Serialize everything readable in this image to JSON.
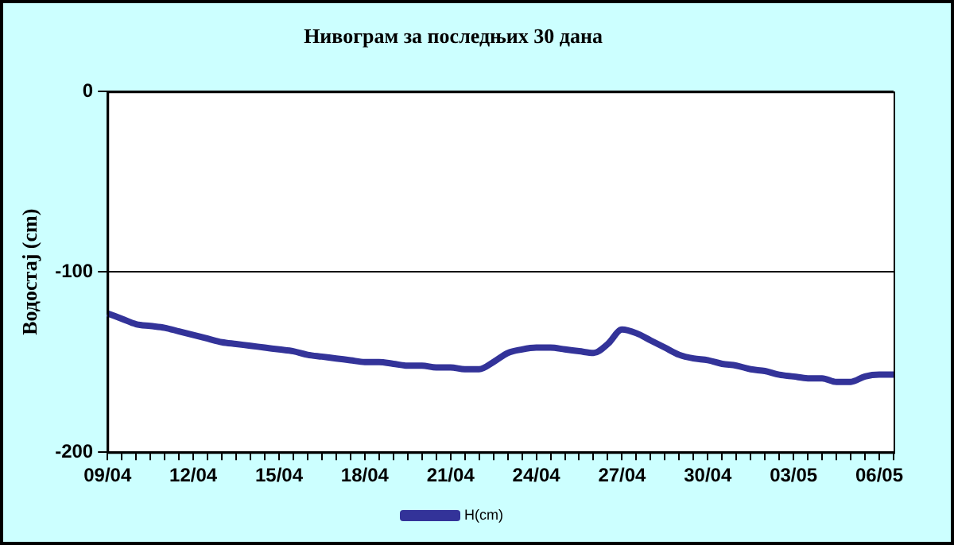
{
  "chart_data": {
    "type": "line",
    "title": "Нивограм за последњих 30 дана",
    "ylabel": "Водостај (cm)",
    "categories": [
      "09/04",
      null,
      null,
      null,
      null,
      null,
      "12/04",
      null,
      null,
      null,
      null,
      null,
      "15/04",
      null,
      null,
      null,
      null,
      null,
      "18/04",
      null,
      null,
      null,
      null,
      null,
      "21/04",
      null,
      null,
      null,
      null,
      null,
      "24/04",
      null,
      null,
      null,
      null,
      null,
      "27/04",
      null,
      null,
      null,
      null,
      null,
      "30/04",
      null,
      null,
      null,
      null,
      null,
      "03/05",
      null,
      null,
      null,
      null,
      null,
      "06/05",
      null
    ],
    "series": [
      {
        "name": "H(cm)",
        "color": "#333399",
        "values": [
          -123,
          -126,
          -129,
          -130,
          -131,
          -133,
          -135,
          -137,
          -139,
          -140,
          -141,
          -142,
          -143,
          -144,
          -146,
          -147,
          -148,
          -149,
          -150,
          -150,
          -151,
          -152,
          -152,
          -153,
          -153,
          -154,
          -154,
          -150,
          -145,
          -143,
          -142,
          -142,
          -143,
          -144,
          -145,
          -140,
          -132,
          -134,
          -138,
          -142,
          -146,
          -148,
          -149,
          -151,
          -152,
          -154,
          -155,
          -157,
          -158,
          -159,
          -159,
          -161,
          -161,
          -158,
          -157,
          -157
        ]
      }
    ],
    "ylim": [
      -200,
      0
    ],
    "yticks": [
      -200,
      -100,
      0
    ],
    "grid": "y",
    "legend": "bottom",
    "marker": "none",
    "line_style": "solid"
  }
}
